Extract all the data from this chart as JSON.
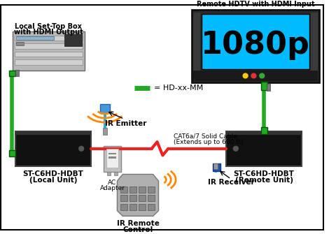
{
  "bg_color": "#ffffff",
  "local_stb_label1": "Local Set-Top Box",
  "local_stb_label2": "with HDMI Output",
  "remote_hdtv_label": "Remote HDTV with HDMI Input",
  "local_box_label1": "ST-C6HD-HDBT",
  "local_box_label2": "(Local Unit)",
  "remote_box_label1": "ST-C6HD-HDBT",
  "remote_box_label2": "(Remote Unit)",
  "ir_emitter_label": "IR Emitter",
  "ir_receiver_label": "IR Receiver",
  "ir_remote_label1": "IR Remote",
  "ir_remote_label2": "Control",
  "ac_adapter_label1": "AC",
  "ac_adapter_label2": "Adapter",
  "cat_cable_label1": "CAT6a/7 Solid Cable",
  "cat_cable_label2": "(Extends up to 600 ft)",
  "legend_label": "= HD-xx-MM",
  "green_color": "#22aa22",
  "blue_color": "#29aadd",
  "red_color": "#ee2222",
  "orange_color": "#ff8800",
  "gray_color": "#aaaaaa",
  "box_color": "#111111",
  "stb_color": "#c0c0c0",
  "tv_screen_color": "#00bbff",
  "dot_colors": [
    "#ffcc00",
    "#dd3333",
    "#33aa33"
  ]
}
